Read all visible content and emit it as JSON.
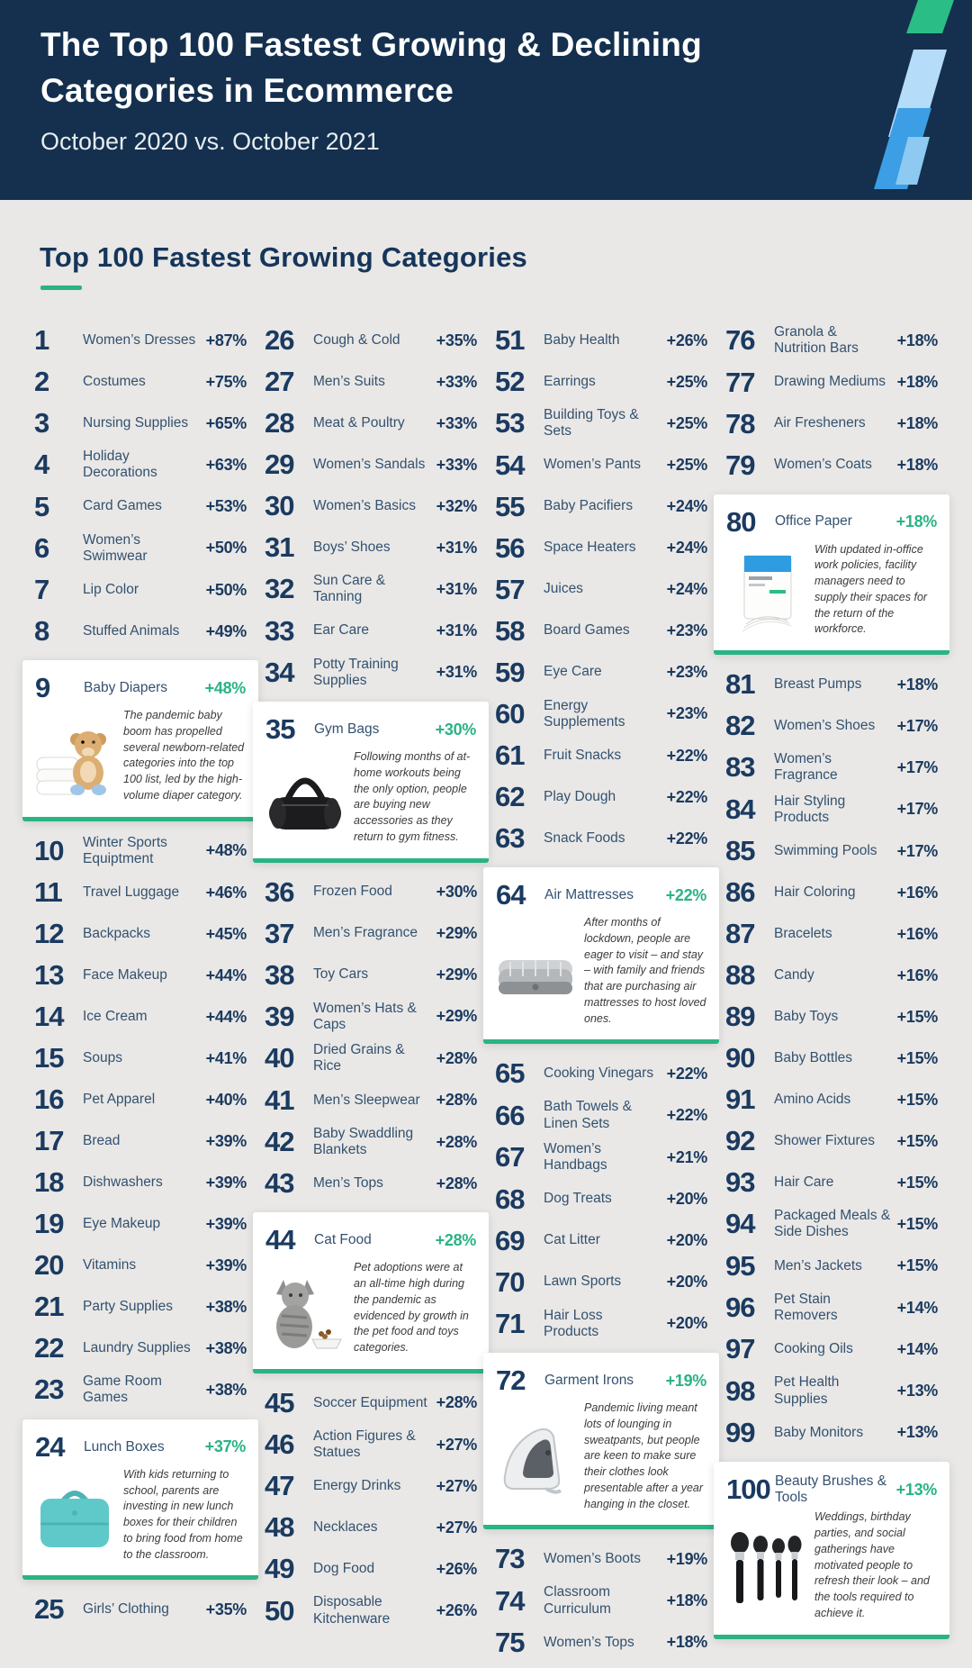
{
  "header": {
    "title_line1": "The Top 100 Fastest Growing & Declining",
    "title_line2": "Categories in Ecommerce",
    "subtitle": "October 2020 vs. October 2021",
    "logo": "lightning-bolt-logo"
  },
  "section": {
    "title": "Top 100 Fastest Growing Categories"
  },
  "colors": {
    "header_bg": "#14304e",
    "body_bg": "#e9e8e6",
    "navy": "#1b3a60",
    "name_text": "#33516f",
    "accent_green": "#2ab383",
    "card_bg": "#ffffff",
    "logo_green": "#2abd85",
    "logo_light_blue": "#b5dcf8",
    "logo_blue": "#3c9ee5"
  },
  "chart_data": {
    "type": "table",
    "title": "The Top 100 Fastest Growing & Declining Categories in Ecommerce",
    "subtitle": "October 2020 vs. October 2021",
    "section_title": "Top 100 Fastest Growing Categories",
    "value_format": "percent_change",
    "columns": [
      [
        {
          "rank": "1",
          "name": "Women’s Dresses",
          "pct": "+87%"
        },
        {
          "rank": "2",
          "name": "Costumes",
          "pct": "+75%"
        },
        {
          "rank": "3",
          "name": "Nursing Supplies",
          "pct": "+65%"
        },
        {
          "rank": "4",
          "name": "Holiday Decorations",
          "pct": "+63%"
        },
        {
          "rank": "5",
          "name": "Card Games",
          "pct": "+53%"
        },
        {
          "rank": "6",
          "name": "Women’s Swimwear",
          "pct": "+50%"
        },
        {
          "rank": "7",
          "name": "Lip Color",
          "pct": "+50%"
        },
        {
          "rank": "8",
          "name": "Stuffed Animals",
          "pct": "+49%"
        },
        {
          "rank": "9",
          "name": "Baby Diapers",
          "pct": "+48%",
          "callout": {
            "text": "The pandemic baby boom has propelled several newborn-related categories into the top 100 list, led by the high-volume diaper category.",
            "image": "teddy-bear-diapers"
          }
        },
        {
          "rank": "10",
          "name": "Winter Sports Equiptment",
          "pct": "+48%"
        },
        {
          "rank": "11",
          "name": "Travel Luggage",
          "pct": "+46%"
        },
        {
          "rank": "12",
          "name": "Backpacks",
          "pct": "+45%"
        },
        {
          "rank": "13",
          "name": "Face Makeup",
          "pct": "+44%"
        },
        {
          "rank": "14",
          "name": "Ice Cream",
          "pct": "+44%"
        },
        {
          "rank": "15",
          "name": "Soups",
          "pct": "+41%"
        },
        {
          "rank": "16",
          "name": "Pet Apparel",
          "pct": "+40%"
        },
        {
          "rank": "17",
          "name": "Bread",
          "pct": "+39%"
        },
        {
          "rank": "18",
          "name": "Dishwashers",
          "pct": "+39%"
        },
        {
          "rank": "19",
          "name": "Eye Makeup",
          "pct": "+39%"
        },
        {
          "rank": "20",
          "name": "Vitamins",
          "pct": "+39%"
        },
        {
          "rank": "21",
          "name": "Party Supplies",
          "pct": "+38%"
        },
        {
          "rank": "22",
          "name": "Laundry Supplies",
          "pct": "+38%"
        },
        {
          "rank": "23",
          "name": "Game Room Games",
          "pct": "+38%"
        },
        {
          "rank": "24",
          "name": "Lunch Boxes",
          "pct": "+37%",
          "callout": {
            "text": "With kids returning to school, parents are investing in new lunch boxes for their children to bring food from home to the classroom.",
            "image": "lunch-box"
          }
        },
        {
          "rank": "25",
          "name": "Girls’ Clothing",
          "pct": "+35%"
        }
      ],
      [
        {
          "rank": "26",
          "name": "Cough & Cold",
          "pct": "+35%"
        },
        {
          "rank": "27",
          "name": "Men’s Suits",
          "pct": "+33%"
        },
        {
          "rank": "28",
          "name": "Meat & Poultry",
          "pct": "+33%"
        },
        {
          "rank": "29",
          "name": "Women’s Sandals",
          "pct": "+33%"
        },
        {
          "rank": "30",
          "name": "Women’s Basics",
          "pct": "+32%"
        },
        {
          "rank": "31",
          "name": "Boys’ Shoes",
          "pct": "+31%"
        },
        {
          "rank": "32",
          "name": "Sun Care & Tanning",
          "pct": "+31%"
        },
        {
          "rank": "33",
          "name": "Ear Care",
          "pct": "+31%"
        },
        {
          "rank": "34",
          "name": "Potty Training Supplies",
          "pct": "+31%"
        },
        {
          "rank": "35",
          "name": "Gym Bags",
          "pct": "+30%",
          "callout": {
            "text": "Following months of at-home workouts being the only option, people are buying new accessories as they return to gym fitness.",
            "image": "gym-bag"
          }
        },
        {
          "rank": "36",
          "name": "Frozen Food",
          "pct": "+30%"
        },
        {
          "rank": "37",
          "name": "Men’s Fragrance",
          "pct": "+29%"
        },
        {
          "rank": "38",
          "name": "Toy Cars",
          "pct": "+29%"
        },
        {
          "rank": "39",
          "name": "Women’s Hats & Caps",
          "pct": "+29%"
        },
        {
          "rank": "40",
          "name": "Dried Grains & Rice",
          "pct": "+28%"
        },
        {
          "rank": "41",
          "name": "Men’s Sleepwear",
          "pct": "+28%"
        },
        {
          "rank": "42",
          "name": "Baby Swaddling Blankets",
          "pct": "+28%"
        },
        {
          "rank": "43",
          "name": "Men’s Tops",
          "pct": "+28%"
        },
        {
          "rank": "44",
          "name": "Cat Food",
          "pct": "+28%",
          "callout": {
            "text": "Pet adoptions were at an all-time high during the pandemic as evidenced by growth in the pet food and toys categories.",
            "image": "kitten-food-bowl"
          }
        },
        {
          "rank": "45",
          "name": "Soccer Equipment",
          "pct": "+28%"
        },
        {
          "rank": "46",
          "name": "Action Figures & Statues",
          "pct": "+27%"
        },
        {
          "rank": "47",
          "name": "Energy Drinks",
          "pct": "+27%"
        },
        {
          "rank": "48",
          "name": "Necklaces",
          "pct": "+27%"
        },
        {
          "rank": "49",
          "name": "Dog Food",
          "pct": "+26%"
        },
        {
          "rank": "50",
          "name": "Disposable Kitchenware",
          "pct": "+26%"
        }
      ],
      [
        {
          "rank": "51",
          "name": "Baby Health",
          "pct": "+26%"
        },
        {
          "rank": "52",
          "name": "Earrings",
          "pct": "+25%"
        },
        {
          "rank": "53",
          "name": "Building Toys & Sets",
          "pct": "+25%"
        },
        {
          "rank": "54",
          "name": "Women’s Pants",
          "pct": "+25%"
        },
        {
          "rank": "55",
          "name": "Baby Pacifiers",
          "pct": "+24%"
        },
        {
          "rank": "56",
          "name": "Space Heaters",
          "pct": "+24%"
        },
        {
          "rank": "57",
          "name": "Juices",
          "pct": "+24%"
        },
        {
          "rank": "58",
          "name": "Board Games",
          "pct": "+23%"
        },
        {
          "rank": "59",
          "name": "Eye Care",
          "pct": "+23%"
        },
        {
          "rank": "60",
          "name": "Energy Supplements",
          "pct": "+23%"
        },
        {
          "rank": "61",
          "name": "Fruit Snacks",
          "pct": "+22%"
        },
        {
          "rank": "62",
          "name": "Play Dough",
          "pct": "+22%"
        },
        {
          "rank": "63",
          "name": "Snack Foods",
          "pct": "+22%"
        },
        {
          "rank": "64",
          "name": "Air Mattresses",
          "pct": "+22%",
          "callout": {
            "text": "After months of lockdown, people are eager to visit – and stay – with family and friends that are purchasing air mattresses to host loved ones.",
            "image": "air-mattress"
          }
        },
        {
          "rank": "65",
          "name": "Cooking Vinegars",
          "pct": "+22%"
        },
        {
          "rank": "66",
          "name": "Bath Towels & Linen Sets",
          "pct": "+22%"
        },
        {
          "rank": "67",
          "name": "Women’s Handbags",
          "pct": "+21%"
        },
        {
          "rank": "68",
          "name": "Dog Treats",
          "pct": "+20%"
        },
        {
          "rank": "69",
          "name": "Cat Litter",
          "pct": "+20%"
        },
        {
          "rank": "70",
          "name": "Lawn Sports",
          "pct": "+20%"
        },
        {
          "rank": "71",
          "name": "Hair Loss Products",
          "pct": "+20%"
        },
        {
          "rank": "72",
          "name": "Garment Irons",
          "pct": "+19%",
          "callout": {
            "text": "Pandemic living meant lots of lounging in sweatpants, but people are keen to make sure their clothes look presentable after a year hanging in the closet.",
            "image": "garment-iron"
          }
        },
        {
          "rank": "73",
          "name": "Women’s Boots",
          "pct": "+19%"
        },
        {
          "rank": "74",
          "name": "Classroom Curriculum",
          "pct": "+18%"
        },
        {
          "rank": "75",
          "name": "Women’s Tops",
          "pct": "+18%"
        }
      ],
      [
        {
          "rank": "76",
          "name": "Granola & Nutrition Bars",
          "pct": "+18%"
        },
        {
          "rank": "77",
          "name": "Drawing Mediums",
          "pct": "+18%"
        },
        {
          "rank": "78",
          "name": "Air Fresheners",
          "pct": "+18%"
        },
        {
          "rank": "79",
          "name": "Women’s Coats",
          "pct": "+18%"
        },
        {
          "rank": "80",
          "name": "Office Paper",
          "pct": "+18%",
          "callout": {
            "text": "With updated in-office work policies, facility managers need to supply their spaces for the return of the workforce.",
            "image": "office-paper-ream"
          }
        },
        {
          "rank": "81",
          "name": "Breast Pumps",
          "pct": "+18%"
        },
        {
          "rank": "82",
          "name": "Women’s Shoes",
          "pct": "+17%"
        },
        {
          "rank": "83",
          "name": "Women’s Fragrance",
          "pct": "+17%"
        },
        {
          "rank": "84",
          "name": "Hair Styling Products",
          "pct": "+17%"
        },
        {
          "rank": "85",
          "name": "Swimming Pools",
          "pct": "+17%"
        },
        {
          "rank": "86",
          "name": "Hair Coloring",
          "pct": "+16%"
        },
        {
          "rank": "87",
          "name": "Bracelets",
          "pct": "+16%"
        },
        {
          "rank": "88",
          "name": "Candy",
          "pct": "+16%"
        },
        {
          "rank": "89",
          "name": "Baby Toys",
          "pct": "+15%"
        },
        {
          "rank": "90",
          "name": "Baby Bottles",
          "pct": "+15%"
        },
        {
          "rank": "91",
          "name": "Amino Acids",
          "pct": "+15%"
        },
        {
          "rank": "92",
          "name": "Shower Fixtures",
          "pct": "+15%"
        },
        {
          "rank": "93",
          "name": "Hair Care",
          "pct": "+15%"
        },
        {
          "rank": "94",
          "name": "Packaged Meals & Side Dishes",
          "pct": "+15%"
        },
        {
          "rank": "95",
          "name": "Men’s Jackets",
          "pct": "+15%"
        },
        {
          "rank": "96",
          "name": "Pet Stain Removers",
          "pct": "+14%"
        },
        {
          "rank": "97",
          "name": "Cooking Oils",
          "pct": "+14%"
        },
        {
          "rank": "98",
          "name": "Pet Health Supplies",
          "pct": "+13%"
        },
        {
          "rank": "99",
          "name": "Baby Monitors",
          "pct": "+13%"
        },
        {
          "rank": "100",
          "name": "Beauty Brushes & Tools",
          "pct": "+13%",
          "callout": {
            "text": "Weddings, birthday parties, and social gatherings have motivated people to refresh their look – and the tools required to achieve it.",
            "image": "makeup-brushes"
          }
        }
      ]
    ]
  }
}
